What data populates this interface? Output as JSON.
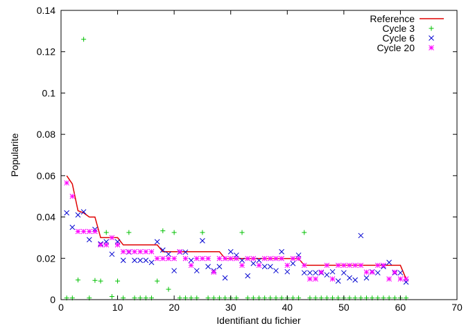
{
  "chart_data": {
    "type": "scatter",
    "xlabel": "Identifiant du fichier",
    "ylabel": "Popularite",
    "xlim": [
      0,
      70
    ],
    "ylim": [
      0,
      0.14
    ],
    "x_ticks": [
      "0",
      "10",
      "20",
      "30",
      "40",
      "50",
      "60",
      "70"
    ],
    "y_ticks": [
      "0",
      "0.02",
      "0.04",
      "0.06",
      "0.08",
      "0.1",
      "0.12",
      "0.14"
    ],
    "grid": false,
    "legend": "top-right",
    "series": [
      {
        "name": "Reference",
        "kind": "step-line",
        "color": "#e00000",
        "x": [
          1,
          2,
          3,
          4,
          5,
          6,
          7,
          8,
          9,
          10,
          11,
          12,
          13,
          14,
          15,
          16,
          17,
          18,
          19,
          20,
          21,
          22,
          23,
          24,
          25,
          26,
          27,
          28,
          29,
          30,
          31,
          32,
          33,
          34,
          35,
          36,
          37,
          38,
          39,
          40,
          41,
          42,
          43,
          44,
          45,
          46,
          47,
          48,
          49,
          50,
          51,
          52,
          53,
          54,
          55,
          56,
          57,
          58,
          59,
          60,
          61
        ],
        "y": [
          0.06,
          0.056,
          0.043,
          0.042,
          0.04,
          0.04,
          0.03,
          0.03,
          0.03,
          0.03,
          0.0265,
          0.0265,
          0.0265,
          0.0265,
          0.0265,
          0.0265,
          0.0265,
          0.0232,
          0.0232,
          0.0232,
          0.0232,
          0.0232,
          0.0232,
          0.0232,
          0.0232,
          0.0232,
          0.0232,
          0.0232,
          0.0199,
          0.0199,
          0.0199,
          0.0199,
          0.0199,
          0.0199,
          0.0199,
          0.0199,
          0.0199,
          0.0199,
          0.0199,
          0.0199,
          0.0199,
          0.0199,
          0.0166,
          0.0166,
          0.0166,
          0.0166,
          0.0166,
          0.0166,
          0.0166,
          0.0166,
          0.0166,
          0.0166,
          0.0166,
          0.0166,
          0.0166,
          0.0166,
          0.0166,
          0.0166,
          0.0166,
          0.0166,
          0.01
        ]
      },
      {
        "name": "Cycle 3",
        "marker": "+",
        "color": "#00c000",
        "x": [
          1,
          2,
          3,
          4,
          5,
          6,
          7,
          8,
          9,
          10,
          11,
          12,
          13,
          14,
          15,
          16,
          17,
          18,
          19,
          20,
          21,
          22,
          23,
          24,
          25,
          26,
          27,
          28,
          29,
          30,
          31,
          32,
          33,
          34,
          35,
          36,
          37,
          38,
          39,
          40,
          41,
          42,
          43,
          44,
          45,
          46,
          47,
          48,
          49,
          50,
          51,
          52,
          53,
          54,
          55,
          56,
          57,
          58,
          59,
          60,
          61
        ],
        "y": [
          0.0008,
          0.0008,
          0.0095,
          0.126,
          0.0008,
          0.0093,
          0.009,
          0.0325,
          0.0015,
          0.009,
          0.0008,
          0.0325,
          0.0008,
          0.0008,
          0.0008,
          0.0008,
          0.009,
          0.0333,
          0.005,
          0.0325,
          0.0008,
          0.0008,
          0.0008,
          0.0008,
          0.0325,
          0.0008,
          0.0008,
          0.0008,
          0.0008,
          0.0008,
          0.0008,
          0.0325,
          0.0008,
          0.0008,
          0.0008,
          0.0008,
          0.0008,
          0.0008,
          0.0008,
          0.0008,
          0.0008,
          0.0008,
          0.0325,
          0.0008,
          0.0008,
          0.0008,
          0.0008,
          0.0008,
          0.0008,
          0.0008,
          0.0008,
          0.0008,
          0.0008,
          0.0008,
          0.0008,
          0.0008,
          0.0008,
          0.0008,
          0.0008,
          0.0008,
          0.0008
        ]
      },
      {
        "name": "Cycle 6",
        "marker": "x",
        "color": "#0000d0",
        "x": [
          1,
          2,
          3,
          4,
          5,
          6,
          7,
          8,
          9,
          10,
          11,
          12,
          13,
          14,
          15,
          16,
          17,
          18,
          19,
          20,
          21,
          22,
          23,
          24,
          25,
          26,
          27,
          28,
          29,
          30,
          31,
          32,
          33,
          34,
          35,
          36,
          37,
          38,
          39,
          40,
          41,
          42,
          43,
          44,
          45,
          46,
          47,
          48,
          49,
          50,
          51,
          52,
          53,
          54,
          55,
          56,
          57,
          58,
          59,
          60,
          61
        ],
        "y": [
          0.042,
          0.035,
          0.041,
          0.0425,
          0.029,
          0.034,
          0.027,
          0.028,
          0.022,
          0.028,
          0.019,
          0.023,
          0.019,
          0.019,
          0.019,
          0.018,
          0.028,
          0.024,
          0.022,
          0.014,
          0.023,
          0.023,
          0.019,
          0.014,
          0.0285,
          0.016,
          0.014,
          0.016,
          0.0105,
          0.0232,
          0.0215,
          0.019,
          0.0115,
          0.0175,
          0.019,
          0.016,
          0.016,
          0.014,
          0.0232,
          0.0135,
          0.0175,
          0.0215,
          0.013,
          0.013,
          0.013,
          0.013,
          0.012,
          0.0135,
          0.009,
          0.013,
          0.0105,
          0.0095,
          0.031,
          0.0105,
          0.0135,
          0.013,
          0.016,
          0.018,
          0.013,
          0.013,
          0.0085
        ]
      },
      {
        "name": "Cycle 20",
        "marker": "*",
        "color": "#ff00ff",
        "x": [
          1,
          2,
          3,
          4,
          5,
          6,
          7,
          8,
          9,
          10,
          11,
          12,
          13,
          14,
          15,
          16,
          17,
          18,
          19,
          20,
          21,
          22,
          23,
          24,
          25,
          26,
          27,
          28,
          29,
          30,
          31,
          32,
          33,
          34,
          35,
          36,
          37,
          38,
          39,
          40,
          41,
          42,
          43,
          44,
          45,
          46,
          47,
          48,
          49,
          50,
          51,
          52,
          53,
          54,
          55,
          56,
          57,
          58,
          59,
          60,
          61
        ],
        "y": [
          0.0565,
          0.05,
          0.033,
          0.033,
          0.033,
          0.033,
          0.0265,
          0.0265,
          0.03,
          0.0265,
          0.0232,
          0.0232,
          0.0232,
          0.0232,
          0.0232,
          0.0232,
          0.0199,
          0.0199,
          0.0199,
          0.0199,
          0.0232,
          0.0199,
          0.0166,
          0.0199,
          0.0199,
          0.0199,
          0.0133,
          0.0199,
          0.0199,
          0.0199,
          0.0199,
          0.0166,
          0.0199,
          0.0199,
          0.0166,
          0.0199,
          0.0199,
          0.0199,
          0.0199,
          0.0166,
          0.0199,
          0.0199,
          0.0166,
          0.01,
          0.01,
          0.0133,
          0.0166,
          0.01,
          0.0166,
          0.0166,
          0.0166,
          0.0166,
          0.0166,
          0.0133,
          0.0133,
          0.0166,
          0.0166,
          0.01,
          0.0133,
          0.01,
          0.01
        ]
      }
    ]
  }
}
